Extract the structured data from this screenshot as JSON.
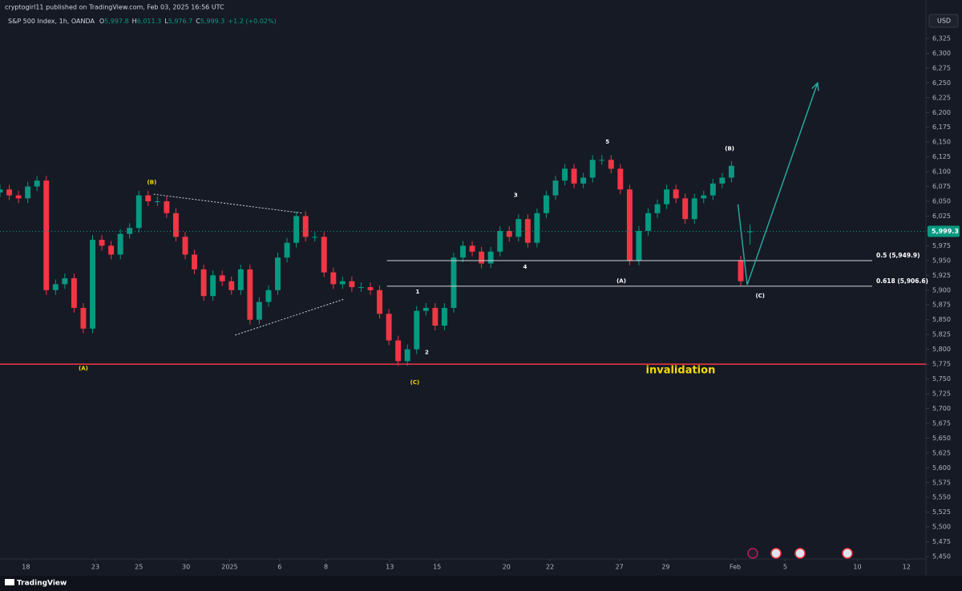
{
  "header": {
    "publisher": "cryptogirl11 published on TradingView.com, Feb 03, 2025 16:56 UTC",
    "symbol": "S&P 500 Index, 1h, OANDA",
    "ohlc": [
      {
        "key": "O",
        "value": "5,997.8"
      },
      {
        "key": "H",
        "value": "6,011.3"
      },
      {
        "key": "L",
        "value": "5,976.7"
      },
      {
        "key": "C",
        "value": "5,999.3"
      }
    ],
    "change": "+1.2 (+0.02%)",
    "currency": "USD",
    "brand": "TradingView"
  },
  "chart_data": {
    "type": "candlestick",
    "up_color": "#089981",
    "down_color": "#f23645",
    "x": [
      0,
      1,
      2,
      3,
      4,
      5,
      6,
      7,
      8,
      9,
      10,
      11,
      12,
      13,
      14,
      15,
      16,
      17,
      18,
      19,
      20,
      21,
      22,
      23,
      24,
      25,
      26,
      27,
      28,
      29,
      30,
      31,
      32,
      33,
      34,
      35,
      36,
      37,
      38,
      39,
      40,
      41,
      42,
      43,
      44,
      45,
      46,
      47,
      48,
      49,
      50,
      51,
      52,
      53,
      54,
      55,
      56,
      57,
      58,
      59,
      60,
      61,
      62,
      63,
      64,
      65,
      66,
      67,
      68,
      69,
      70,
      71,
      72,
      73,
      74,
      75,
      76,
      77,
      78,
      79,
      80,
      81
    ],
    "open": [
      6065,
      6070,
      6060,
      6055,
      6075,
      6085,
      5900,
      5910,
      5920,
      5870,
      5835,
      5985,
      5975,
      5960,
      5995,
      6005,
      6060,
      6050,
      6050,
      6030,
      5990,
      5960,
      5935,
      5890,
      5925,
      5915,
      5900,
      5935,
      5850,
      5880,
      5900,
      5955,
      5980,
      6025,
      5990,
      5990,
      5930,
      5910,
      5915,
      5905,
      5905,
      5900,
      5860,
      5815,
      5780,
      5800,
      5865,
      5870,
      5840,
      5870,
      5955,
      5975,
      5965,
      5945,
      5965,
      6000,
      5990,
      6020,
      5980,
      6030,
      6060,
      6085,
      6105,
      6080,
      6090,
      6120,
      6120,
      6105,
      6070,
      5950,
      6000,
      6030,
      6045,
      6070,
      6055,
      6020,
      6055,
      6060,
      6080,
      6090,
      5950,
      5997.8
    ],
    "high": [
      6078,
      6078,
      6068,
      6083,
      6093,
      6093,
      5918,
      5928,
      5928,
      5878,
      5993,
      5993,
      5983,
      6003,
      6013,
      6068,
      6068,
      6058,
      6058,
      6038,
      5998,
      5968,
      5943,
      5933,
      5933,
      5923,
      5943,
      5943,
      5888,
      5908,
      5963,
      5988,
      6033,
      6033,
      5998,
      5998,
      5938,
      5923,
      5923,
      5913,
      5913,
      5908,
      5868,
      5823,
      5808,
      5873,
      5878,
      5878,
      5878,
      5963,
      5983,
      5983,
      5973,
      5973,
      6008,
      6008,
      6028,
      6028,
      6038,
      6068,
      6093,
      6113,
      6113,
      6098,
      6128,
      6128,
      6128,
      6113,
      6078,
      6008,
      6038,
      6053,
      6078,
      6078,
      6063,
      6063,
      6068,
      6088,
      6098,
      6118,
      5958,
      6011.3
    ],
    "low": [
      6057,
      6052,
      6047,
      6047,
      6067,
      5892,
      5892,
      5902,
      5862,
      5827,
      5827,
      5967,
      5952,
      5952,
      5987,
      5997,
      6042,
      6042,
      6022,
      5982,
      5952,
      5927,
      5882,
      5882,
      5907,
      5892,
      5892,
      5842,
      5842,
      5872,
      5892,
      5947,
      5972,
      5982,
      5982,
      5922,
      5902,
      5902,
      5897,
      5897,
      5892,
      5852,
      5807,
      5772,
      5772,
      5792,
      5857,
      5832,
      5832,
      5862,
      5947,
      5957,
      5937,
      5937,
      5957,
      5982,
      5982,
      5972,
      5972,
      6022,
      6052,
      6077,
      6072,
      6072,
      6082,
      6112,
      6097,
      6062,
      5942,
      5942,
      5992,
      6022,
      6037,
      6047,
      6012,
      6012,
      6047,
      6052,
      6072,
      6082,
      5907,
      5976.7
    ],
    "close": [
      6070,
      6060,
      6055,
      6075,
      6085,
      5900,
      5910,
      5920,
      5870,
      5835,
      5985,
      5975,
      5960,
      5995,
      6005,
      6060,
      6050,
      6050,
      6030,
      5990,
      5960,
      5935,
      5890,
      5925,
      5915,
      5900,
      5935,
      5850,
      5880,
      5900,
      5955,
      5980,
      6025,
      5990,
      5990,
      5930,
      5910,
      5915,
      5905,
      5905,
      5900,
      5860,
      5815,
      5780,
      5800,
      5865,
      5870,
      5840,
      5870,
      5955,
      5975,
      5965,
      5945,
      5965,
      6000,
      5990,
      6020,
      5980,
      6030,
      6060,
      6085,
      6105,
      6080,
      6090,
      6120,
      6120,
      6105,
      6070,
      5950,
      6000,
      6030,
      6045,
      6070,
      6055,
      6020,
      6055,
      6060,
      6080,
      6090,
      6110,
      5915,
      5999.3
    ],
    "last_label": "5,999.3",
    "xlim": [
      0,
      100
    ],
    "ylim": [
      5446,
      6390
    ],
    "xticks": [
      {
        "value": 2.8,
        "label": "18"
      },
      {
        "value": 10.3,
        "label": "23"
      },
      {
        "value": 15,
        "label": "25"
      },
      {
        "value": 20.1,
        "label": "30"
      },
      {
        "value": 24.8,
        "label": "2025"
      },
      {
        "value": 30.2,
        "label": "6"
      },
      {
        "value": 35.2,
        "label": "8"
      },
      {
        "value": 42.1,
        "label": "13"
      },
      {
        "value": 47.2,
        "label": "15"
      },
      {
        "value": 54.7,
        "label": "20"
      },
      {
        "value": 59.4,
        "label": "22"
      },
      {
        "value": 66.9,
        "label": "27"
      },
      {
        "value": 71.9,
        "label": "29"
      },
      {
        "value": 79.4,
        "label": "Feb"
      },
      {
        "value": 84.8,
        "label": "5"
      },
      {
        "value": 92.6,
        "label": "10"
      },
      {
        "value": 97.9,
        "label": "12"
      }
    ],
    "yticks": [
      {
        "value": 5450,
        "label": "5,450"
      },
      {
        "value": 5475,
        "label": "5,475"
      },
      {
        "value": 5500,
        "label": "5,500"
      },
      {
        "value": 5525,
        "label": "5,525"
      },
      {
        "value": 5550,
        "label": "5,550"
      },
      {
        "value": 5575,
        "label": "5,575"
      },
      {
        "value": 5600,
        "label": "5,600"
      },
      {
        "value": 5625,
        "label": "5,625"
      },
      {
        "value": 5650,
        "label": "5,650"
      },
      {
        "value": 5675,
        "label": "5,675"
      },
      {
        "value": 5700,
        "label": "5,700"
      },
      {
        "value": 5725,
        "label": "5,725"
      },
      {
        "value": 5750,
        "label": "5,750"
      },
      {
        "value": 5775,
        "label": "5,775"
      },
      {
        "value": 5800,
        "label": "5,800"
      },
      {
        "value": 5825,
        "label": "5,825"
      },
      {
        "value": 5850,
        "label": "5,850"
      },
      {
        "value": 5875,
        "label": "5,875"
      },
      {
        "value": 5900,
        "label": "5,900"
      },
      {
        "value": 5925,
        "label": "5,925"
      },
      {
        "value": 5950,
        "label": "5,950"
      },
      {
        "value": 5975,
        "label": "5,975"
      },
      {
        "value": 6000,
        "label": "6,000"
      },
      {
        "value": 6025,
        "label": "6,025"
      },
      {
        "value": 6050,
        "label": "6,050"
      },
      {
        "value": 6075,
        "label": "6,075"
      },
      {
        "value": 6100,
        "label": "6,100"
      },
      {
        "value": 6125,
        "label": "6,125"
      },
      {
        "value": 6150,
        "label": "6,150"
      },
      {
        "value": 6175,
        "label": "6,175"
      },
      {
        "value": 6200,
        "label": "6,200"
      },
      {
        "value": 6225,
        "label": "6,225"
      },
      {
        "value": 6250,
        "label": "6,250"
      },
      {
        "value": 6275,
        "label": "6,275"
      },
      {
        "value": 6300,
        "label": "6,300"
      },
      {
        "value": 6325,
        "label": "6,325"
      }
    ],
    "waves": [
      {
        "text": "(A)",
        "x": 9.0,
        "y": 5768,
        "color": "#f5d90a"
      },
      {
        "text": "(B)",
        "x": 16.4,
        "y": 6082,
        "color": "#f5d90a"
      },
      {
        "text": "(C)",
        "x": 44.8,
        "y": 5744,
        "color": "#f5d90a"
      },
      {
        "text": "1",
        "x": 45.1,
        "y": 5897,
        "color": "#ffffff"
      },
      {
        "text": "2",
        "x": 46.1,
        "y": 5795,
        "color": "#ffffff"
      },
      {
        "text": "3",
        "x": 55.7,
        "y": 6060,
        "color": "#ffffff"
      },
      {
        "text": "4",
        "x": 56.7,
        "y": 5939,
        "color": "#ffffff"
      },
      {
        "text": "5",
        "x": 65.6,
        "y": 6150,
        "color": "#ffffff"
      },
      {
        "text": "(A)",
        "x": 67.1,
        "y": 5915,
        "color": "#ffffff"
      },
      {
        "text": "(B)",
        "x": 78.8,
        "y": 6139,
        "color": "#ffffff"
      },
      {
        "text": "(C)",
        "x": 82.1,
        "y": 5890,
        "color": "#ffffff"
      }
    ],
    "levels": [
      {
        "label": "0.5 (5,949.9)",
        "value": 5949.9,
        "x": [
          41.8,
          94.2
        ]
      },
      {
        "label": "0.618 (5,906.6)",
        "value": 5906.6,
        "x": [
          41.8,
          94.2
        ]
      }
    ],
    "invalidation": {
      "value": 5775,
      "color": "#f23645",
      "label": "invalidation",
      "label_x": 73.5,
      "label_y": 5764,
      "label_color": "#f5d90a"
    },
    "trendlines": [
      {
        "x": [
          16.6,
          32.7
        ],
        "y": [
          6062,
          6030
        ]
      },
      {
        "x": [
          25.4,
          37.2
        ],
        "y": [
          5824,
          5885
        ]
      }
    ],
    "projection": {
      "color": "#26a69a",
      "x": [
        79.7,
        80.7,
        88.3
      ],
      "y": [
        6045,
        5909,
        6250
      ]
    }
  }
}
